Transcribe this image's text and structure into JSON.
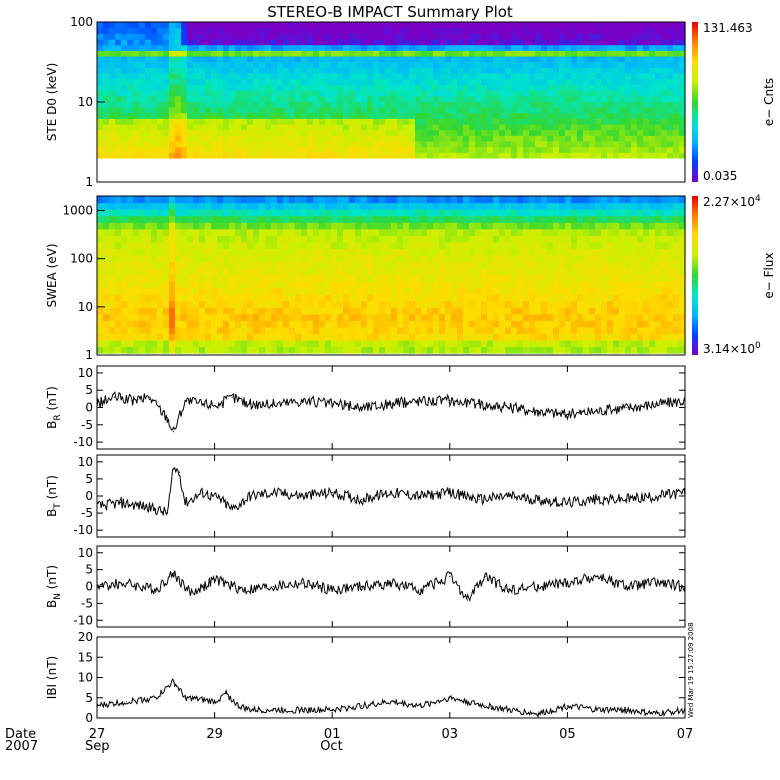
{
  "title": "STEREO-B IMPACT Summary Plot",
  "stamp": "Wed Mar 19 15:27:09 2008",
  "colors": {
    "spectrogram_scale": [
      "#7a00c8",
      "#0040ff",
      "#00b4ff",
      "#00e6c8",
      "#32d732",
      "#c8f000",
      "#ffdc00",
      "#ff8200",
      "#e60000"
    ],
    "trace": "#000000",
    "frame": "#000000"
  },
  "x_axis": {
    "row_label_1": "Date",
    "row_label_2": "2007",
    "ticks": [
      {
        "day": 0,
        "label": "27",
        "sublabel": "Sep"
      },
      {
        "day": 2,
        "label": "29",
        "sublabel": ""
      },
      {
        "day": 4,
        "label": "01",
        "sublabel": "Oct"
      },
      {
        "day": 6,
        "label": "03",
        "sublabel": ""
      },
      {
        "day": 8,
        "label": "05",
        "sublabel": ""
      },
      {
        "day": 10,
        "label": "07",
        "sublabel": ""
      }
    ],
    "range_days": [
      0,
      10
    ],
    "start_date": "2007-09-27"
  },
  "chart_data": [
    {
      "type": "heatmap",
      "ylabel": "STE D0 (keV)",
      "yscale": "log",
      "ylim": [
        1,
        100
      ],
      "yticks": [
        "1",
        "10",
        "100"
      ],
      "colorbar": {
        "label": "e− Cnts",
        "max": "131.463",
        "min": "0.035"
      },
      "description": "Electron count spectrogram, energies 2-100 keV; elevated counts below ~6 keV until Oct 02, strong band near 40 keV"
    },
    {
      "type": "heatmap",
      "ylabel": "SWEA (eV)",
      "yscale": "log",
      "ylim": [
        1,
        2000
      ],
      "yticks": [
        "1",
        "10",
        "100",
        "1000"
      ],
      "colorbar": {
        "label": "e− Flux",
        "max_mantissa": "2.27×10",
        "max_exp": "4",
        "min_mantissa": "3.14×10",
        "min_exp": "0"
      },
      "description": "Electron flux spectrogram, highest flux near 5-10 eV, enhancement near Sep 28"
    },
    {
      "type": "line",
      "ylabel_main": "B",
      "ylabel_sub": "R",
      "ylabel_unit": " (nT)",
      "ylim": [
        -12,
        12
      ],
      "yticks": [
        -10,
        -5,
        0,
        5,
        10
      ],
      "x": [
        0,
        0.3,
        0.6,
        0.9,
        1.2,
        1.3,
        1.5,
        1.8,
        2.1,
        2.3,
        2.6,
        3.0,
        3.5,
        4.0,
        4.5,
        5.0,
        5.5,
        6.0,
        6.5,
        7.0,
        7.5,
        8.0,
        8.5,
        9.0,
        9.5,
        10.0
      ],
      "y": [
        1,
        3,
        2,
        3,
        -3,
        -7,
        2,
        1,
        1,
        3,
        1,
        1,
        2,
        1,
        0,
        1,
        2,
        2,
        1,
        0,
        -1,
        -2,
        -1,
        0,
        1,
        2
      ]
    },
    {
      "type": "line",
      "ylabel_main": "B",
      "ylabel_sub": "T",
      "ylabel_unit": " (nT)",
      "ylim": [
        -12,
        12
      ],
      "yticks": [
        -10,
        -5,
        0,
        5,
        10
      ],
      "x": [
        0,
        0.4,
        0.8,
        1.0,
        1.2,
        1.3,
        1.4,
        1.5,
        1.8,
        2.1,
        2.3,
        2.6,
        3.0,
        3.5,
        4.0,
        4.5,
        5.0,
        5.5,
        6.0,
        6.5,
        7.0,
        7.5,
        8.0,
        8.5,
        9.0,
        9.5,
        10.0
      ],
      "y": [
        -3,
        -2,
        -3,
        -4,
        -5,
        8,
        7,
        -2,
        1,
        -1,
        -4,
        0,
        1,
        0,
        1,
        -1,
        1,
        0,
        1,
        -1,
        0,
        -1,
        -2,
        -1,
        -1,
        0,
        1
      ]
    },
    {
      "type": "line",
      "ylabel_main": "B",
      "ylabel_sub": "N",
      "ylabel_unit": " (nT)",
      "ylim": [
        -12,
        12
      ],
      "yticks": [
        -10,
        -5,
        0,
        5,
        10
      ],
      "x": [
        0,
        0.5,
        1.0,
        1.3,
        1.6,
        2.0,
        2.5,
        3.0,
        3.5,
        4.0,
        4.5,
        5.0,
        5.5,
        6.0,
        6.3,
        6.6,
        7.0,
        7.5,
        8.0,
        8.5,
        9.0,
        9.5,
        10.0
      ],
      "y": [
        0,
        1,
        -1,
        4,
        -2,
        2,
        -1,
        0,
        1,
        -1,
        0,
        1,
        -1,
        3,
        -4,
        3,
        -1,
        0,
        1,
        3,
        0,
        1,
        0
      ]
    },
    {
      "type": "line",
      "ylabel_main": "IBI",
      "ylabel_sub": "",
      "ylabel_unit": " (nT)",
      "ylim": [
        0,
        20
      ],
      "yticks": [
        0,
        5,
        10,
        15,
        20
      ],
      "x": [
        0,
        0.5,
        1.0,
        1.3,
        1.5,
        2.0,
        2.2,
        2.4,
        2.6,
        3.0,
        3.5,
        4.0,
        4.5,
        5.0,
        5.5,
        6.0,
        6.3,
        6.6,
        7.0,
        7.5,
        8.0,
        8.5,
        9.0,
        9.5,
        10.0
      ],
      "y": [
        3,
        4,
        5,
        9,
        5,
        4,
        6,
        3,
        2,
        2,
        2,
        2,
        3,
        4,
        3,
        5,
        4,
        3,
        2,
        1,
        3,
        2,
        2,
        1,
        2
      ]
    }
  ]
}
